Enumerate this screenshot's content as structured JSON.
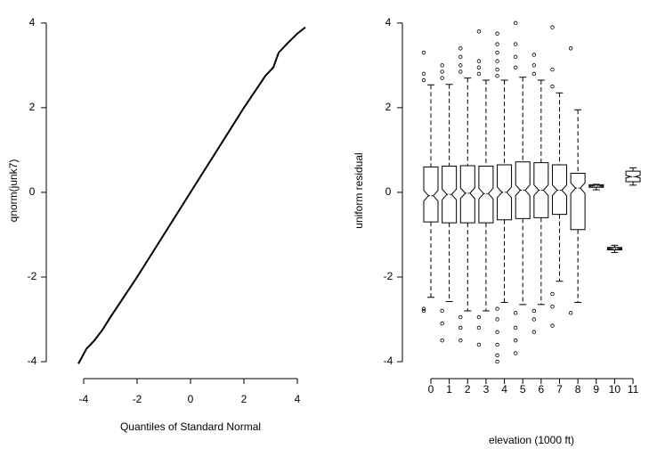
{
  "chart_data": [
    {
      "type": "line",
      "xlabel": "Quantiles of Standard Normal",
      "ylabel": "qnorm(junk7)",
      "color": "#000000",
      "x": [
        -4.2,
        -3.9,
        -3.6,
        -3.3,
        -3.0,
        -2.0,
        0,
        2.0,
        2.8,
        3.1,
        3.3,
        3.6,
        4.0,
        4.3
      ],
      "y": [
        -4.05,
        -3.7,
        -3.5,
        -3.25,
        -2.95,
        -2.0,
        0,
        2.0,
        2.75,
        2.95,
        3.3,
        3.5,
        3.75,
        3.9
      ],
      "xlim": [
        -5.4,
        4.7
      ],
      "ylim": [
        -4.4,
        4.3
      ],
      "xticks": [
        -4,
        -2,
        0,
        2,
        4
      ],
      "yticks": [
        -4,
        -2,
        0,
        2,
        4
      ]
    },
    {
      "type": "box",
      "xlabel": "elevation (1000 ft)",
      "ylabel": "uniform residual",
      "color": "#000000",
      "categories": [
        "0",
        "1",
        "2",
        "3",
        "4",
        "5",
        "6",
        "7",
        "8",
        "9",
        "10",
        "11"
      ],
      "boxes": [
        {
          "q1": -0.7,
          "median": -0.08,
          "q3": 0.6,
          "whislo": -2.48,
          "whishi": 2.54,
          "fliers": [
            3.3,
            2.8,
            2.65,
            -2.75,
            -2.8
          ]
        },
        {
          "q1": -0.72,
          "median": -0.05,
          "q3": 0.62,
          "whislo": -2.58,
          "whishi": 2.55,
          "fliers": [
            3.0,
            2.85,
            2.7,
            -2.8,
            -3.1,
            -3.5
          ]
        },
        {
          "q1": -0.72,
          "median": -0.02,
          "q3": 0.63,
          "whislo": -2.8,
          "whishi": 2.7,
          "fliers": [
            3.4,
            3.2,
            3.0,
            2.85,
            -2.95,
            -3.2,
            -3.5
          ]
        },
        {
          "q1": -0.72,
          "median": -0.03,
          "q3": 0.62,
          "whislo": -2.8,
          "whishi": 2.65,
          "fliers": [
            3.8,
            3.1,
            2.95,
            2.8,
            -2.95,
            -3.2,
            -3.6
          ]
        },
        {
          "q1": -0.65,
          "median": 0.0,
          "q3": 0.65,
          "whislo": -2.6,
          "whishi": 2.65,
          "fliers": [
            3.75,
            3.5,
            3.3,
            3.1,
            2.9,
            2.75,
            -2.75,
            -3.0,
            -3.3,
            -3.6,
            -3.85,
            -4.0
          ]
        },
        {
          "q1": -0.62,
          "median": 0.05,
          "q3": 0.72,
          "whislo": -2.65,
          "whishi": 2.72,
          "fliers": [
            4.0,
            3.5,
            3.2,
            2.95,
            -2.85,
            -3.2,
            -3.5,
            -3.8
          ]
        },
        {
          "q1": -0.6,
          "median": 0.05,
          "q3": 0.7,
          "whislo": -2.65,
          "whishi": 2.65,
          "fliers": [
            3.25,
            3.0,
            2.8,
            -2.8,
            -3.0,
            -3.3
          ]
        },
        {
          "q1": -0.52,
          "median": 0.05,
          "q3": 0.65,
          "whislo": -2.1,
          "whishi": 2.35,
          "fliers": [
            3.9,
            2.9,
            2.5,
            -2.4,
            -2.7,
            -3.15
          ]
        },
        {
          "q1": -0.88,
          "median": 0.1,
          "q3": 0.45,
          "whislo": -2.6,
          "whishi": 1.95,
          "fliers": [
            3.4,
            -2.85
          ]
        },
        {
          "q1": 0.12,
          "median": 0.15,
          "q3": 0.18,
          "whislo": 0.06,
          "whishi": 0.19,
          "fliers": []
        },
        {
          "q1": -1.36,
          "median": -1.33,
          "q3": -1.3,
          "whislo": -1.42,
          "whishi": -1.25,
          "fliers": []
        },
        {
          "q1": 0.25,
          "median": 0.37,
          "q3": 0.5,
          "whislo": 0.17,
          "whishi": 0.58,
          "fliers": []
        }
      ],
      "ylim": [
        -4.4,
        4.3
      ],
      "yticks": [
        -4,
        -2,
        0,
        2,
        4
      ]
    }
  ]
}
